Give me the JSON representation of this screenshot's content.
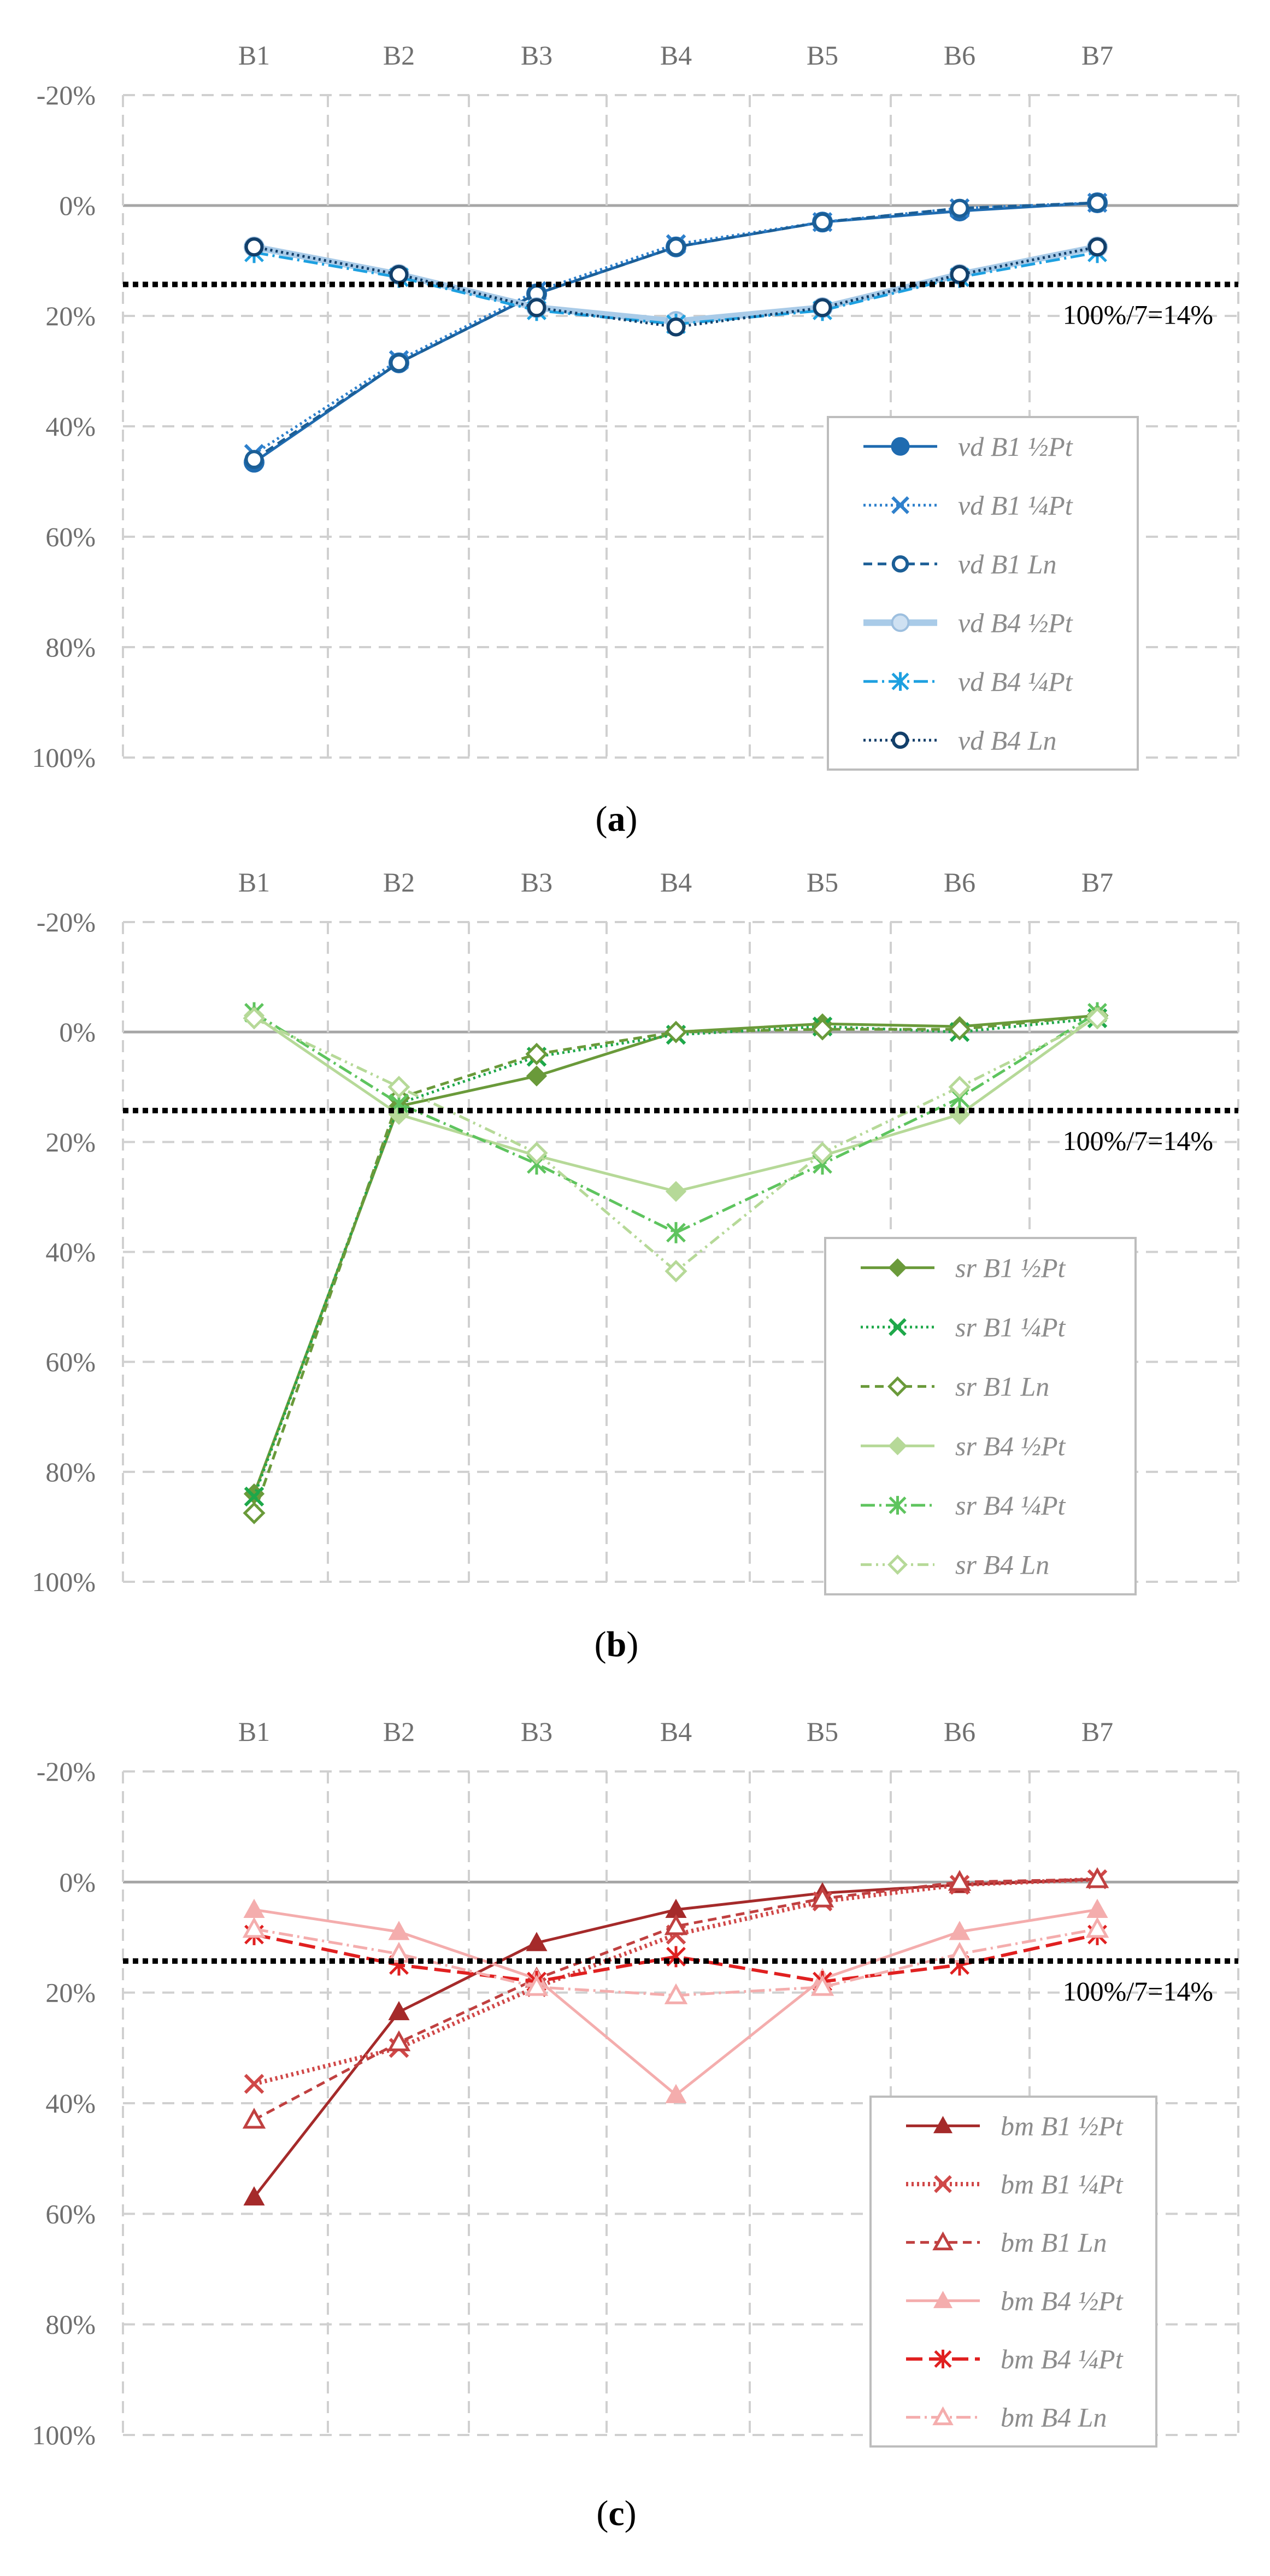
{
  "reference_label": "100%/7=14%",
  "chart_data": [
    {
      "type": "line",
      "caption_letter": "a",
      "categories": [
        "B1",
        "B2",
        "B3",
        "B4",
        "B5",
        "B6",
        "B7"
      ],
      "y_ticks": [
        "-20%",
        "0%",
        "20%",
        "40%",
        "60%",
        "80%",
        "100%"
      ],
      "ylim": [
        -20,
        100
      ],
      "y_inverted": true,
      "reference_line": 14.29,
      "legend_position": "lower-right",
      "series": [
        {
          "name": "vd B1 ",
          "fraction": "½",
          "suffix": "Pt",
          "values": [
            46.5,
            28.5,
            16,
            7.5,
            3,
            1,
            -0.5
          ],
          "color": "#1f6bb0",
          "dash": "",
          "width": 5,
          "marker": "circle-filled"
        },
        {
          "name": "vd B1 ",
          "fraction": "¼",
          "suffix": "Pt",
          "values": [
            45,
            28,
            15.5,
            7,
            3,
            0.5,
            -0.5
          ],
          "color": "#2e80cc",
          "dash": "4 6",
          "width": 5,
          "marker": "x"
        },
        {
          "name": "vd B1 ",
          "fraction": "",
          "suffix": "Ln",
          "values": [
            46,
            28.5,
            16,
            7.5,
            3,
            0.5,
            -0.5
          ],
          "color": "#1b5e96",
          "dash": "16 10",
          "width": 5,
          "marker": "circle-open"
        },
        {
          "name": "vd B4 ",
          "fraction": "½",
          "suffix": "Pt",
          "values": [
            7.5,
            12.5,
            18.5,
            21,
            18.5,
            12.5,
            7.5
          ],
          "color": "#a9cbe8",
          "dash": "",
          "width": 12,
          "marker": "circle-light"
        },
        {
          "name": "vd B4 ",
          "fraction": "¼",
          "suffix": "Pt",
          "values": [
            8.5,
            13,
            19,
            21.5,
            19,
            13,
            8.5
          ],
          "color": "#1ea0e0",
          "dash": "26 8 4 8",
          "width": 5,
          "marker": "asterisk"
        },
        {
          "name": "vd B4 ",
          "fraction": "",
          "suffix": "Ln",
          "values": [
            7.5,
            12.5,
            18.5,
            22,
            18.5,
            12.5,
            7.5
          ],
          "color": "#123f6a",
          "dash": "4 6",
          "width": 5,
          "marker": "circle-open"
        }
      ]
    },
    {
      "type": "line",
      "caption_letter": "b",
      "categories": [
        "B1",
        "B2",
        "B3",
        "B4",
        "B5",
        "B6",
        "B7"
      ],
      "y_ticks": [
        "-20%",
        "0%",
        "20%",
        "40%",
        "60%",
        "80%",
        "100%"
      ],
      "ylim": [
        -20,
        100
      ],
      "y_inverted": true,
      "reference_line": 14.29,
      "legend_position": "lower-right",
      "series": [
        {
          "name": "sr B1 ",
          "fraction": "½",
          "suffix": "Pt",
          "values": [
            84,
            13.5,
            8,
            0,
            -1.5,
            -1,
            -3
          ],
          "color": "#6a9a3a",
          "dash": "",
          "width": 5,
          "marker": "diamond-filled"
        },
        {
          "name": "sr B1 ",
          "fraction": "¼",
          "suffix": "Pt",
          "values": [
            84.5,
            13,
            4.5,
            0.5,
            -1,
            0,
            -2.5
          ],
          "color": "#1ea84a",
          "dash": "4 6",
          "width": 5,
          "marker": "x"
        },
        {
          "name": "sr B1 ",
          "fraction": "",
          "suffix": "Ln",
          "values": [
            87.5,
            12,
            4,
            0,
            -0.5,
            -0.5,
            -3
          ],
          "color": "#6a9a3a",
          "dash": "16 10",
          "width": 5,
          "marker": "diamond-open"
        },
        {
          "name": "sr B4 ",
          "fraction": "½",
          "suffix": "Pt",
          "values": [
            -3,
            15,
            22.5,
            29,
            22.5,
            15,
            -3
          ],
          "color": "#b6d998",
          "dash": "",
          "width": 5,
          "marker": "diamond-light"
        },
        {
          "name": "sr B4 ",
          "fraction": "¼",
          "suffix": "Pt",
          "values": [
            -3.5,
            13,
            24,
            36.5,
            24,
            12,
            -3.5
          ],
          "color": "#5ec45e",
          "dash": "26 8 4 8",
          "width": 5,
          "marker": "asterisk"
        },
        {
          "name": "sr B4 ",
          "fraction": "",
          "suffix": "Ln",
          "values": [
            -2.5,
            10,
            22,
            43.5,
            22,
            10,
            -2.5
          ],
          "color": "#b6d998",
          "dash": "20 8 4 8 4 8",
          "width": 5,
          "marker": "diamond-open"
        }
      ]
    },
    {
      "type": "line",
      "caption_letter": "c",
      "categories": [
        "B1",
        "B2",
        "B3",
        "B4",
        "B5",
        "B6",
        "B7"
      ],
      "y_ticks": [
        "-20%",
        "0%",
        "20%",
        "40%",
        "60%",
        "80%",
        "100%"
      ],
      "ylim": [
        -20,
        100
      ],
      "y_inverted": true,
      "reference_line": 14.29,
      "legend_position": "lower-right",
      "series": [
        {
          "name": "bm B1 ",
          "fraction": "½",
          "suffix": "Pt",
          "values": [
            57,
            23.5,
            11,
            5,
            2,
            0.5,
            -0.5
          ],
          "color": "#a52a2a",
          "dash": "",
          "width": 5,
          "marker": "triangle-filled"
        },
        {
          "name": "bm B1 ",
          "fraction": "¼",
          "suffix": "Pt",
          "values": [
            36.5,
            30,
            19,
            9.5,
            3.5,
            0.5,
            -0.5
          ],
          "color": "#d04848",
          "dash": "4 6",
          "width": 8,
          "marker": "x"
        },
        {
          "name": "bm B1 ",
          "fraction": "",
          "suffix": "Ln",
          "values": [
            43,
            29,
            17.5,
            8,
            3,
            0,
            -0.5
          ],
          "color": "#c04040",
          "dash": "16 10",
          "width": 5,
          "marker": "triangle-open"
        },
        {
          "name": "bm B4 ",
          "fraction": "½",
          "suffix": "Pt",
          "values": [
            5,
            9,
            17.5,
            38.5,
            17.5,
            9,
            5
          ],
          "color": "#f4adad",
          "dash": "",
          "width": 5,
          "marker": "triangle-light"
        },
        {
          "name": "bm B4 ",
          "fraction": "¼",
          "suffix": "Pt",
          "values": [
            9.5,
            15,
            18,
            13.5,
            18,
            15,
            9.5
          ],
          "color": "#e02020",
          "dash": "30 12",
          "width": 6,
          "marker": "asterisk"
        },
        {
          "name": "bm B4 ",
          "fraction": "",
          "suffix": "Ln",
          "values": [
            8.5,
            13,
            19,
            20.5,
            19,
            13,
            8.5
          ],
          "color": "#f4adad",
          "dash": "26 8 4 8",
          "width": 5,
          "marker": "triangle-open"
        }
      ]
    }
  ]
}
